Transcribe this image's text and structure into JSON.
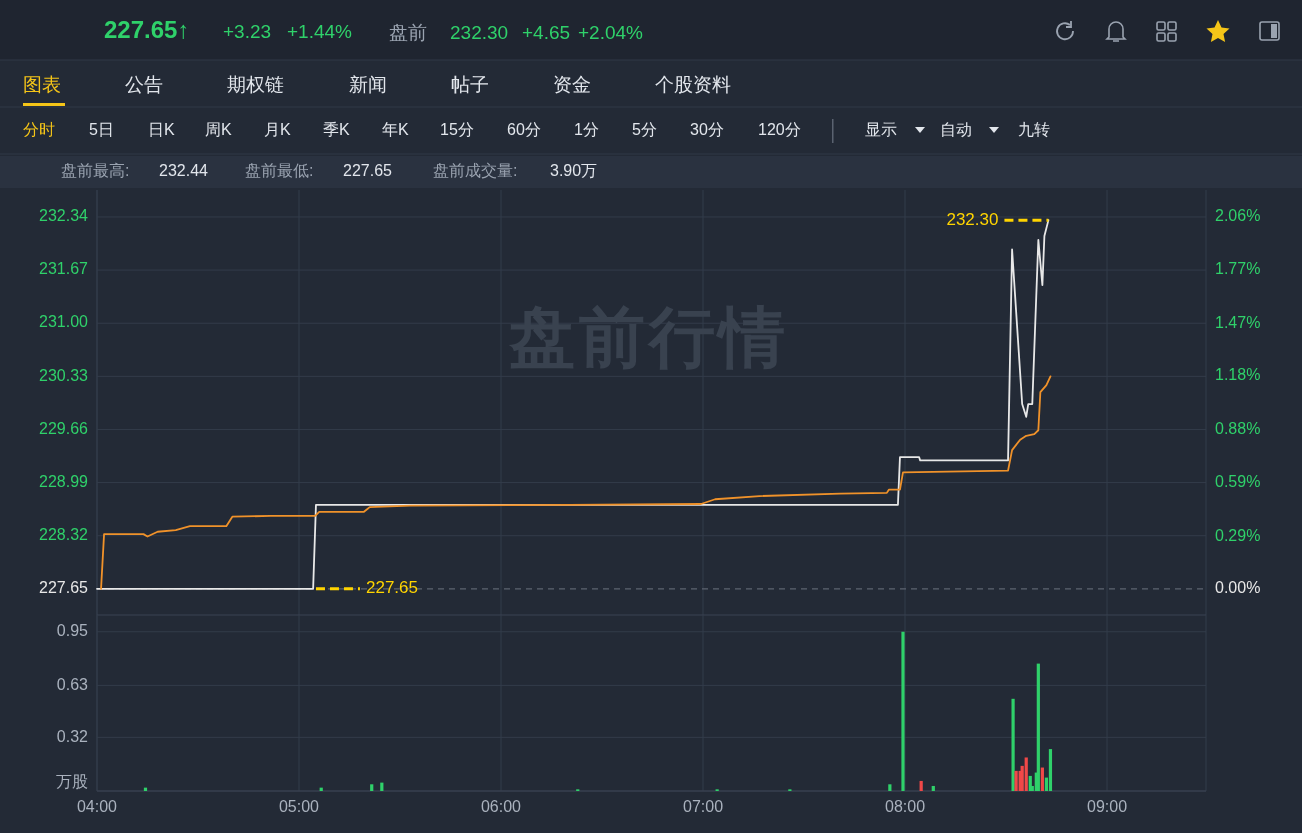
{
  "chart_data": [
    {
      "type": "line",
      "xlim": [
        4,
        9.49
      ],
      "ylim": [
        227.32,
        232.68
      ],
      "y2lim": [
        -0.145,
        2.21
      ],
      "grid": true,
      "tick_labels": "y",
      "xticks": [
        {
          "value": 4,
          "label": null
        },
        {
          "value": 5,
          "label": null
        },
        {
          "value": 6,
          "label": null
        },
        {
          "value": 7,
          "label": null
        },
        {
          "value": 8,
          "label": null
        },
        {
          "value": 9,
          "label": null
        }
      ],
      "yticks": [
        227.65,
        228.32,
        228.99,
        229.66,
        230.33,
        {
          "value": 231,
          "label": "231.00"
        },
        231.67,
        232.34
      ],
      "y2ticks": [
        {
          "value": 0,
          "label": "0.00%"
        },
        {
          "value": 0.29,
          "label": "0.29%"
        },
        {
          "value": 0.59,
          "label": "0.59%"
        },
        {
          "value": 0.88,
          "label": "0.88%"
        },
        {
          "value": 1.18,
          "label": "1.18%"
        },
        {
          "value": 1.47,
          "label": "1.47%"
        },
        {
          "value": 1.77,
          "label": "1.77%"
        },
        {
          "value": 2.06,
          "label": "2.06%"
        }
      ],
      "ref_lines": [
        {
          "axis": "y",
          "value": 227.65,
          "color": "#5d6470",
          "line_style": "dashed"
        }
      ],
      "series": [
        {
          "color": "#e8e8e8",
          "x": [
            4,
            5.07,
            5.084,
            7.965,
            7.975,
            8.07,
            8.075,
            8.51,
            8.53,
            8.58,
            8.6,
            8.61,
            8.63,
            8.66,
            8.68,
            8.69,
            8.71
          ],
          "values": [
            227.65,
            227.65,
            228.71,
            228.71,
            229.31,
            229.31,
            229.27,
            229.27,
            231.93,
            229.98,
            229.82,
            229.98,
            229.98,
            232.05,
            231.48,
            232.1,
            232.3
          ]
        },
        {
          "color": "#f0922a",
          "x": [
            4.02,
            4.035,
            4.23,
            4.25,
            4.3,
            4.39,
            4.46,
            4.64,
            4.67,
            4.86,
            5.08,
            5.1,
            5.32,
            5.35,
            5.55,
            6.34,
            6.99,
            7.06,
            7.28,
            7.68,
            7.91,
            7.92,
            7.975,
            7.99,
            8.51,
            8.53,
            8.57,
            8.6,
            8.64,
            8.66,
            8.67,
            8.7,
            8.72
          ],
          "values": [
            227.65,
            228.34,
            228.34,
            228.31,
            228.37,
            228.39,
            228.44,
            228.44,
            228.56,
            228.57,
            228.57,
            228.62,
            228.62,
            228.68,
            228.7,
            228.71,
            228.72,
            228.78,
            228.82,
            228.85,
            228.86,
            228.9,
            228.9,
            229.12,
            229.14,
            229.4,
            229.53,
            229.58,
            229.6,
            229.65,
            230.13,
            230.22,
            230.33
          ]
        }
      ],
      "annotations": [
        "227.65↑",
        "+3.23",
        "+1.44%",
        "盘前",
        "232.30",
        "+4.65",
        "+2.04%",
        "图表",
        "公告",
        "期权链",
        "新闻",
        "帖子",
        "资金",
        "个股资料",
        "分时",
        "5日",
        "日K",
        "周K",
        "月K",
        "季K",
        "年K",
        "15分",
        "60分",
        "1分",
        "5分",
        "30分",
        "120分",
        "显示",
        "自动",
        "九转",
        "盘前最高:",
        "232.44",
        "盘前最低:",
        "227.65",
        "盘前成交量:",
        "3.90万",
        "盘前行情",
        {
          "text": "227.65",
          "x": 5.084,
          "y": 227.65
        },
        {
          "text": "232.30",
          "x": 8.71,
          "y": 232.3
        }
      ]
    },
    {
      "type": "bar",
      "xlim": [
        4,
        9.49
      ],
      "ylim": [
        0,
        1.05
      ],
      "grid": true,
      "xticks": [
        {
          "value": 4,
          "label": "04:00"
        },
        {
          "value": 5,
          "label": "05:00"
        },
        {
          "value": 6,
          "label": "06:00"
        },
        {
          "value": 7,
          "label": "07:00"
        },
        {
          "value": 8,
          "label": "08:00"
        },
        {
          "value": 9,
          "label": "09:00"
        }
      ],
      "yticks": [
        {
          "value": 0,
          "label": "万股"
        },
        0.32,
        0.63,
        0.95
      ],
      "x": [
        4.24,
        5.11,
        5.36,
        5.41,
        6.38,
        7.07,
        7.43,
        7.925,
        7.99,
        8.08,
        8.14,
        8.535,
        8.55,
        8.57,
        8.58,
        8.6,
        8.62,
        8.63,
        8.65,
        8.66,
        8.68,
        8.7,
        8.72
      ],
      "values": [
        0.02,
        0.02,
        0.04,
        0.05,
        0.01,
        0.01,
        0.01,
        0.04,
        0.95,
        0.06,
        0.03,
        0.55,
        0.12,
        0.12,
        0.15,
        0.2,
        0.09,
        0.03,
        0.11,
        0.76,
        0.14,
        0.08,
        0.25
      ],
      "colors": [
        "#2fd16a",
        "#2fd16a",
        "#2fd16a",
        "#2fd16a",
        "#2fd16a",
        "#2fd16a",
        "#2fd16a",
        "#2fd16a",
        "#2fd16a",
        "#f04848",
        "#2fd16a",
        "#2fd16a",
        "#f04848",
        "#f04848",
        "#f04848",
        "#f04848",
        "#2fd16a",
        "#2fd16a",
        "#2fd16a",
        "#2fd16a",
        "#f04848",
        "#2fd16a",
        "#2fd16a"
      ]
    }
  ]
}
